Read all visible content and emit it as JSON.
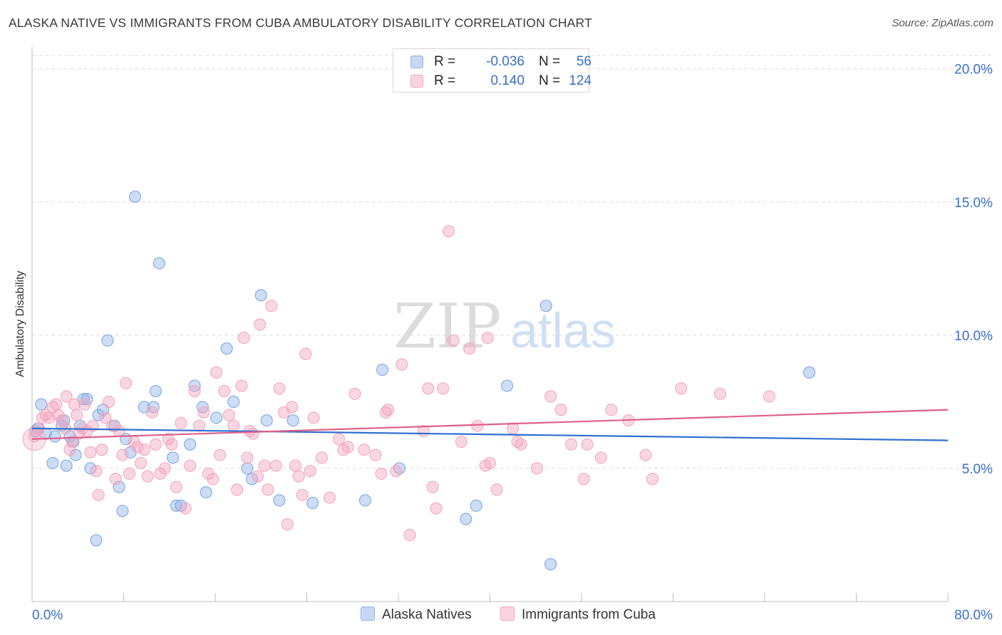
{
  "header": {
    "title": "ALASKA NATIVE VS IMMIGRANTS FROM CUBA AMBULATORY DISABILITY CORRELATION CHART",
    "source": "Source: ZipAtlas.com"
  },
  "watermark": {
    "zip": "ZIP",
    "atlas": "atlas"
  },
  "legend": {
    "rows": [
      {
        "r_label": "R =",
        "r_value": "-0.036",
        "n_label": "N =",
        "n_value": "56"
      },
      {
        "r_label": "R =",
        "r_value": "0.140",
        "n_label": "N =",
        "n_value": "124"
      }
    ]
  },
  "bottom_legend": {
    "series1": "Alaska Natives",
    "series2": "Immigrants from Cuba"
  },
  "chart_data": {
    "type": "scatter",
    "title": "ALASKA NATIVE VS IMMIGRANTS FROM CUBA AMBULATORY DISABILITY CORRELATION CHART",
    "ylabel": "Ambulatory Disability",
    "xlabel": "",
    "xlim": [
      0,
      80
    ],
    "ylim": [
      0,
      20.5
    ],
    "x_tick_labels": [
      "0.0%",
      "80.0%"
    ],
    "y_tick_labels": [
      "5.0%",
      "10.0%",
      "15.0%",
      "20.0%"
    ],
    "y_ticks": [
      5,
      10,
      15,
      20
    ],
    "grid": "horizontal dashed",
    "legend_position": "top-center",
    "colors": {
      "alaska": "#8fb4e8",
      "alaska_line": "#2f6fd0",
      "cuba": "#f2a6bf",
      "cuba_line": "#e0608a",
      "tick_text": "#3a6fc4"
    },
    "series": [
      {
        "name": "Alaska Natives",
        "r": -0.036,
        "n": 56,
        "trend": [
          [
            0,
            6.5
          ],
          [
            80,
            6.05
          ]
        ],
        "points": [
          [
            0.3,
            6.4
          ],
          [
            0.8,
            7.4
          ],
          [
            1.2,
            6.3
          ],
          [
            1.8,
            5.2
          ],
          [
            2.0,
            6.2
          ],
          [
            2.6,
            6.6
          ],
          [
            2.8,
            6.8
          ],
          [
            3.0,
            5.1
          ],
          [
            3.3,
            6.2
          ],
          [
            3.6,
            6.0
          ],
          [
            3.8,
            5.5
          ],
          [
            4.2,
            6.6
          ],
          [
            4.5,
            7.6
          ],
          [
            4.8,
            7.6
          ],
          [
            5.1,
            5.0
          ],
          [
            5.6,
            2.3
          ],
          [
            5.8,
            7.0
          ],
          [
            6.2,
            7.2
          ],
          [
            6.6,
            9.8
          ],
          [
            7.2,
            6.6
          ],
          [
            7.6,
            4.3
          ],
          [
            7.9,
            3.4
          ],
          [
            8.2,
            6.1
          ],
          [
            8.6,
            5.6
          ],
          [
            9.0,
            15.2
          ],
          [
            9.8,
            7.3
          ],
          [
            10.6,
            7.3
          ],
          [
            10.8,
            7.9
          ],
          [
            11.1,
            12.7
          ],
          [
            12.3,
            5.4
          ],
          [
            12.6,
            3.6
          ],
          [
            13.0,
            3.6
          ],
          [
            13.8,
            5.9
          ],
          [
            14.2,
            8.1
          ],
          [
            14.9,
            7.3
          ],
          [
            15.2,
            4.1
          ],
          [
            16.1,
            6.9
          ],
          [
            17.0,
            9.5
          ],
          [
            17.6,
            7.5
          ],
          [
            18.8,
            5.0
          ],
          [
            19.2,
            4.6
          ],
          [
            20.0,
            11.5
          ],
          [
            20.5,
            6.8
          ],
          [
            21.6,
            3.8
          ],
          [
            22.8,
            6.8
          ],
          [
            24.5,
            3.7
          ],
          [
            29.1,
            3.8
          ],
          [
            30.6,
            8.7
          ],
          [
            32.1,
            5.0
          ],
          [
            37.9,
            3.1
          ],
          [
            38.8,
            3.6
          ],
          [
            41.5,
            8.1
          ],
          [
            44.9,
            11.1
          ],
          [
            45.3,
            1.4
          ],
          [
            67.9,
            8.6
          ],
          [
            0.5,
            6.5
          ]
        ]
      },
      {
        "name": "Immigrants from Cuba",
        "r": 0.14,
        "n": 124,
        "trend": [
          [
            0,
            6.1
          ],
          [
            80,
            7.2
          ]
        ],
        "points": [
          [
            0.2,
            6.2
          ],
          [
            0.6,
            6.5
          ],
          [
            0.9,
            6.9
          ],
          [
            1.2,
            7.0
          ],
          [
            1.5,
            6.9
          ],
          [
            1.8,
            7.3
          ],
          [
            2.1,
            7.4
          ],
          [
            2.3,
            7.0
          ],
          [
            2.6,
            6.8
          ],
          [
            2.9,
            6.5
          ],
          [
            3.0,
            7.7
          ],
          [
            3.3,
            5.7
          ],
          [
            3.5,
            6.0
          ],
          [
            3.7,
            7.4
          ],
          [
            3.9,
            7.0
          ],
          [
            4.1,
            6.3
          ],
          [
            4.4,
            6.5
          ],
          [
            4.6,
            7.4
          ],
          [
            4.8,
            6.4
          ],
          [
            5.1,
            5.6
          ],
          [
            5.3,
            6.6
          ],
          [
            5.6,
            4.9
          ],
          [
            5.8,
            4.0
          ],
          [
            6.1,
            5.7
          ],
          [
            6.4,
            6.9
          ],
          [
            6.7,
            7.5
          ],
          [
            7.0,
            6.6
          ],
          [
            7.3,
            4.6
          ],
          [
            7.6,
            6.4
          ],
          [
            7.9,
            5.5
          ],
          [
            8.2,
            8.2
          ],
          [
            8.5,
            4.8
          ],
          [
            8.9,
            6.0
          ],
          [
            9.2,
            5.8
          ],
          [
            9.5,
            5.2
          ],
          [
            9.8,
            5.7
          ],
          [
            10.1,
            4.7
          ],
          [
            10.5,
            7.1
          ],
          [
            10.8,
            5.9
          ],
          [
            11.2,
            4.8
          ],
          [
            11.6,
            5.0
          ],
          [
            11.9,
            6.1
          ],
          [
            12.2,
            5.9
          ],
          [
            12.6,
            4.3
          ],
          [
            13.0,
            6.7
          ],
          [
            13.4,
            3.5
          ],
          [
            13.8,
            5.1
          ],
          [
            14.2,
            7.9
          ],
          [
            14.6,
            6.6
          ],
          [
            15.0,
            7.1
          ],
          [
            15.4,
            4.8
          ],
          [
            15.8,
            4.6
          ],
          [
            16.1,
            8.6
          ],
          [
            16.4,
            5.5
          ],
          [
            16.8,
            7.9
          ],
          [
            17.2,
            7.0
          ],
          [
            17.6,
            6.6
          ],
          [
            17.9,
            4.2
          ],
          [
            18.3,
            8.1
          ],
          [
            18.5,
            9.9
          ],
          [
            18.8,
            5.4
          ],
          [
            19.0,
            6.4
          ],
          [
            19.3,
            6.3
          ],
          [
            19.7,
            4.7
          ],
          [
            19.9,
            10.4
          ],
          [
            20.3,
            5.1
          ],
          [
            20.6,
            4.2
          ],
          [
            20.9,
            11.1
          ],
          [
            21.3,
            5.1
          ],
          [
            21.6,
            8.0
          ],
          [
            22.0,
            7.1
          ],
          [
            22.3,
            2.9
          ],
          [
            22.7,
            7.3
          ],
          [
            23.0,
            5.1
          ],
          [
            23.3,
            4.7
          ],
          [
            23.6,
            4.0
          ],
          [
            23.9,
            9.3
          ],
          [
            24.3,
            4.9
          ],
          [
            24.6,
            6.9
          ],
          [
            25.3,
            5.4
          ],
          [
            26.0,
            3.9
          ],
          [
            26.8,
            6.1
          ],
          [
            27.2,
            5.7
          ],
          [
            27.6,
            5.8
          ],
          [
            28.2,
            7.8
          ],
          [
            29.0,
            5.7
          ],
          [
            30.0,
            5.5
          ],
          [
            30.5,
            4.8
          ],
          [
            30.9,
            7.1
          ],
          [
            31.1,
            7.2
          ],
          [
            31.8,
            4.9
          ],
          [
            32.3,
            8.9
          ],
          [
            33.0,
            2.5
          ],
          [
            34.2,
            6.4
          ],
          [
            34.6,
            8.0
          ],
          [
            35.0,
            4.3
          ],
          [
            35.3,
            3.5
          ],
          [
            35.9,
            8.0
          ],
          [
            36.4,
            13.9
          ],
          [
            36.8,
            9.8
          ],
          [
            37.5,
            6.0
          ],
          [
            38.2,
            9.5
          ],
          [
            38.9,
            6.6
          ],
          [
            39.6,
            5.1
          ],
          [
            39.8,
            9.9
          ],
          [
            40.0,
            5.2
          ],
          [
            40.6,
            4.2
          ],
          [
            42.0,
            6.5
          ],
          [
            42.4,
            6.0
          ],
          [
            42.7,
            5.9
          ],
          [
            44.1,
            5.0
          ],
          [
            45.3,
            7.7
          ],
          [
            46.2,
            7.2
          ],
          [
            47.1,
            5.9
          ],
          [
            48.2,
            4.6
          ],
          [
            48.5,
            5.9
          ],
          [
            49.7,
            5.4
          ],
          [
            50.6,
            7.2
          ],
          [
            52.1,
            6.8
          ],
          [
            53.6,
            5.5
          ],
          [
            54.2,
            4.6
          ],
          [
            56.7,
            8.0
          ],
          [
            60.1,
            7.8
          ],
          [
            64.4,
            7.7
          ]
        ]
      }
    ]
  }
}
